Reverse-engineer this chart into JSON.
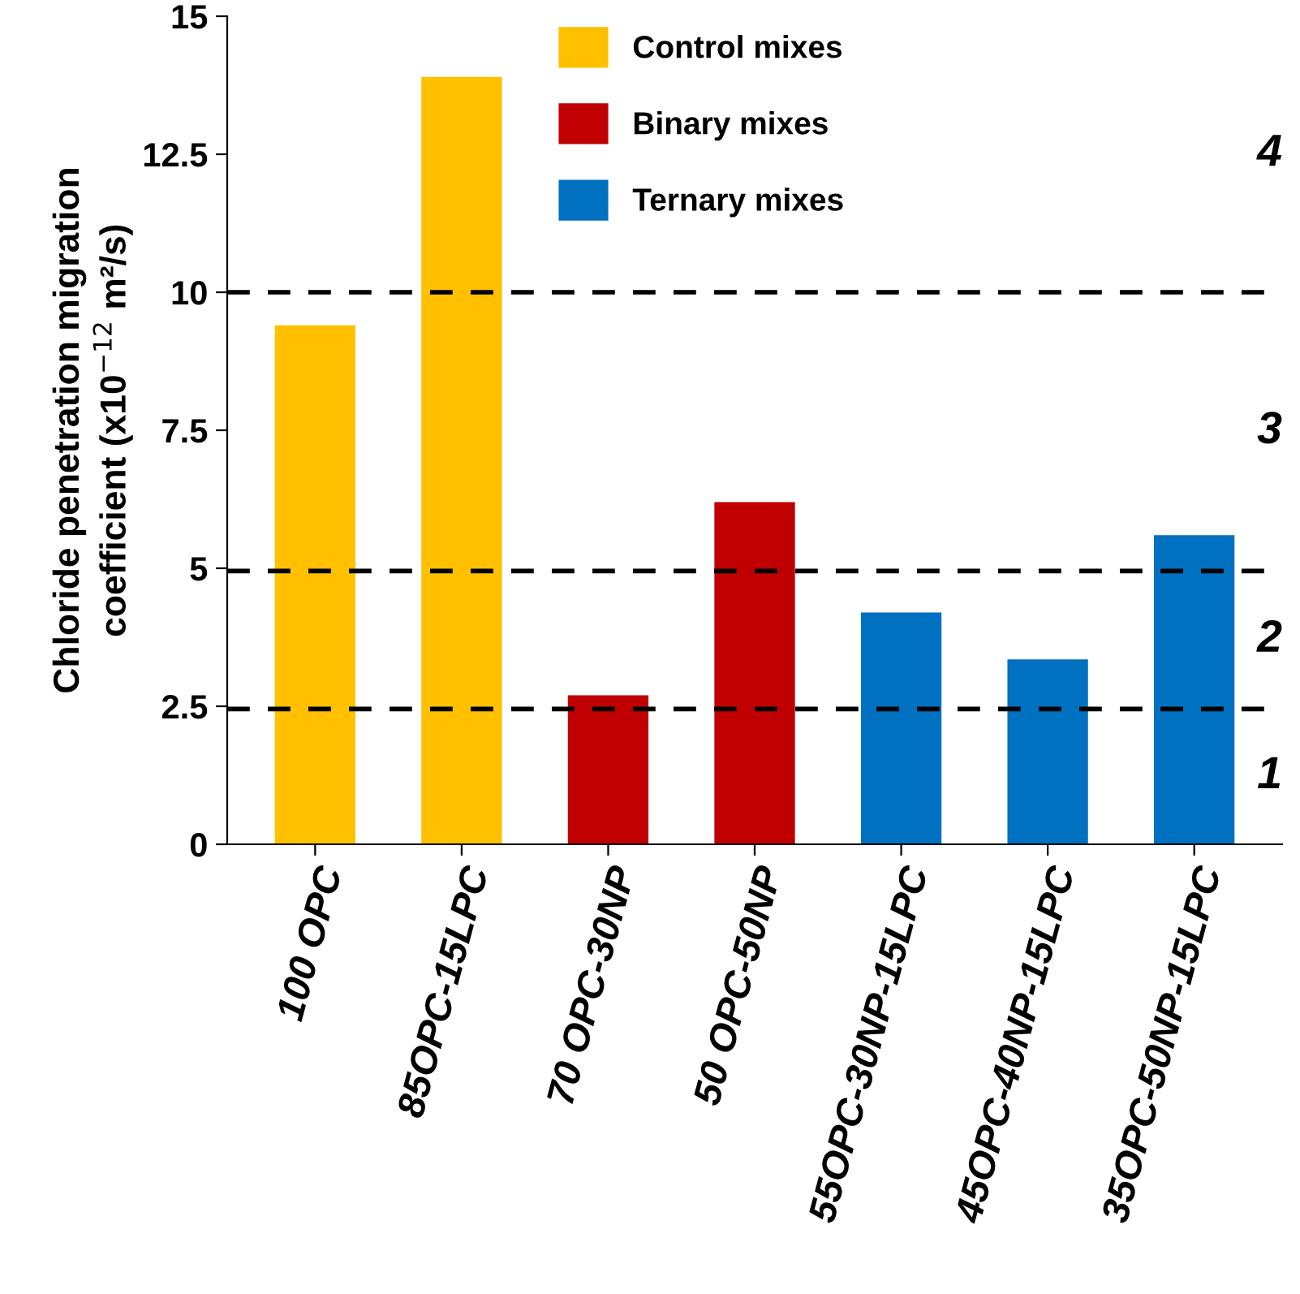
{
  "chart_data": {
    "type": "bar",
    "ylabel": "Chloride penetration migration\ncoefficient (x10$^{−12}$ m²/s)",
    "categories": [
      "100 OPC",
      "85OPC-15LPC",
      "70 OPC-30NP",
      "50 OPC-50NP",
      "55OPC-30NP-15LPC",
      "45OPC-40NP-15LPC",
      "35OPC-50NP-15LPC"
    ],
    "series": [
      {
        "name": "Control mixes",
        "color": "#ffc000",
        "values": [
          9.4,
          13.9,
          null,
          null,
          null,
          null,
          null
        ]
      },
      {
        "name": "Binary mixes",
        "color": "#c00000",
        "values": [
          null,
          null,
          2.7,
          6.2,
          null,
          null,
          null
        ]
      },
      {
        "name": "Ternary mixes",
        "color": "#0070c0",
        "values": [
          null,
          null,
          null,
          null,
          4.2,
          3.35,
          5.6
        ]
      }
    ],
    "ylim": [
      0,
      15
    ],
    "yticks": [
      0,
      2.5,
      5,
      7.5,
      10,
      12.5,
      15
    ],
    "ref_lines": [
      {
        "axis": "y",
        "value": 10,
        "line_style": "dashed",
        "color": "#000000"
      },
      {
        "axis": "y",
        "value": 4.95,
        "line_style": "dashed",
        "color": "#000000"
      },
      {
        "axis": "y",
        "value": 2.45,
        "line_style": "dashed",
        "color": "#000000"
      }
    ],
    "annotations": [
      "1",
      "2",
      "3",
      "4"
    ],
    "legend": "top",
    "grid": false
  }
}
